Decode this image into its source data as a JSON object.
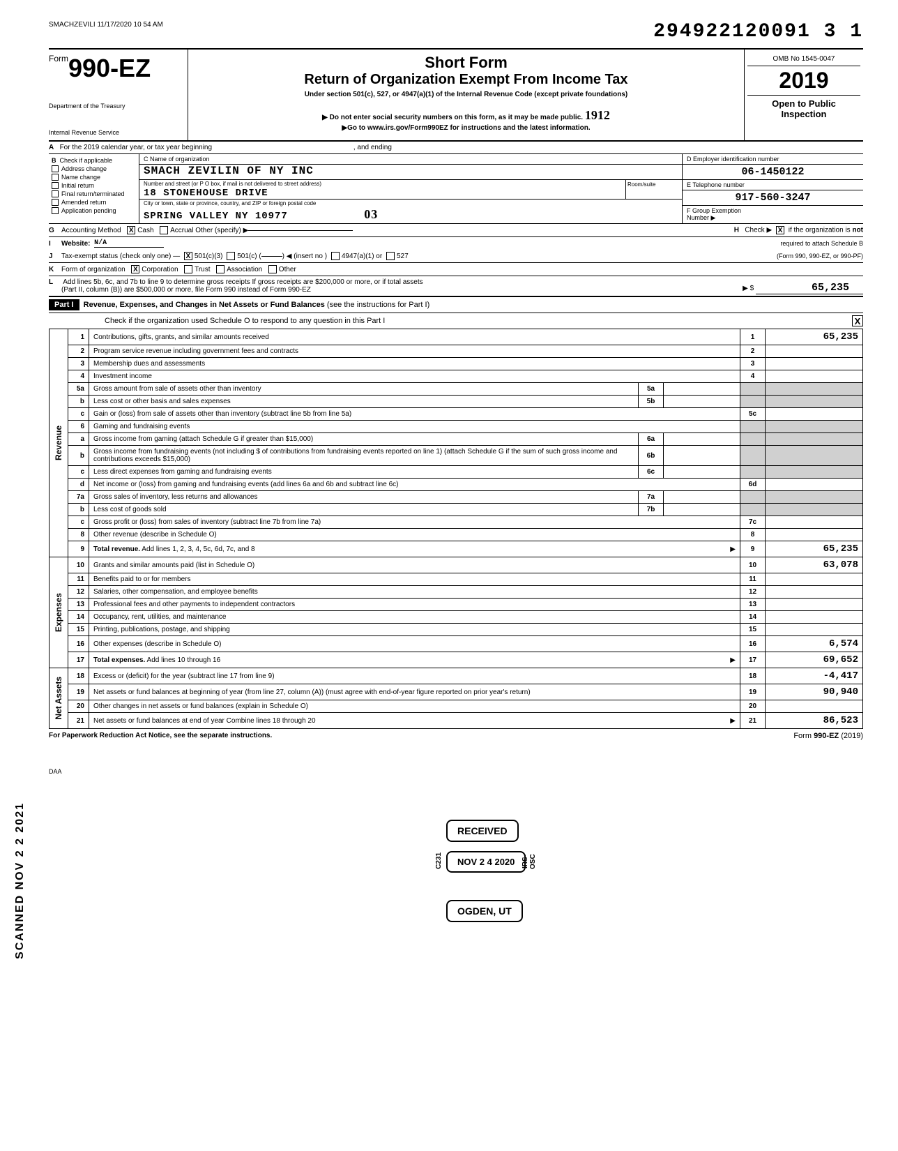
{
  "timestamp": "SMACHZEVILI 11/17/2020 10 54 AM",
  "barcode_number": "294922120091 3  1",
  "form": {
    "form_word": "Form",
    "number": "990-EZ",
    "dept1": "Department of the Treasury",
    "dept2": "Internal Revenue Service",
    "short_form": "Short Form",
    "title": "Return of Organization Exempt From Income Tax",
    "subtitle": "Under section 501(c), 527, or 4947(a)(1) of the Internal Revenue Code (except private foundations)",
    "arrow1": "▶ Do not enter social security numbers on this form, as it may be made public.",
    "arrow2": "▶Go to www.irs.gov/Form990EZ for instructions and the latest information.",
    "omb": "OMB No 1545-0047",
    "year": "2019",
    "open1": "Open to Public",
    "open2": "Inspection",
    "hand_initial": "1912"
  },
  "row_a": {
    "label": "A",
    "text": "For the 2019 calendar year, or tax year beginning",
    "mid": ", and ending"
  },
  "section_b": {
    "label": "B",
    "check_if": "Check if applicable",
    "cb1": "Address change",
    "cb2": "Name change",
    "cb3": "Initial return",
    "cb4": "Final return/terminated",
    "cb5": "Amended return",
    "cb6": "Application pending",
    "c_label": "C  Name of organization",
    "org_name": "SMACH ZEVILIN OF NY INC",
    "addr_label": "Number and street (or P O  box, if mail is not delivered to street address)",
    "addr": "18 STONEHOUSE DRIVE",
    "room_label": "Room/suite",
    "city_label": "City or town, state or province, country, and ZIP or foreign postal code",
    "city": "SPRING VALLEY          NY 10977",
    "hand_03": "03",
    "d_label": "D  Employer identification number",
    "ein": "06-1450122",
    "e_label": "E  Telephone number",
    "phone": "917-560-3247",
    "f_label": "F  Group Exemption",
    "f_label2": "Number  ▶"
  },
  "rows": {
    "g": {
      "lbl": "G",
      "text": "Accounting Method",
      "cash": "Cash",
      "accrual": "Accrual  Other (specify) ▶"
    },
    "h": {
      "lbl": "H",
      "text1": "Check ▶",
      "text2": "if the organization is",
      "text3": "not",
      "text4": "required to attach Schedule B",
      "text5": "(Form 990, 990-EZ, or 990-PF)"
    },
    "i": {
      "lbl": "I",
      "text": "Website:",
      "val": "N/A"
    },
    "j": {
      "lbl": "J",
      "text": "Tax-exempt status (check only one) —",
      "opt1": "501(c)(3)",
      "opt2": "501(c) (",
      "opt2b": ")  ◀ (insert no )",
      "opt3": "4947(a)(1) or",
      "opt4": "527"
    },
    "k": {
      "lbl": "K",
      "text": "Form of organization",
      "opt1": "Corporation",
      "opt2": "Trust",
      "opt3": "Association",
      "opt4": "Other"
    },
    "l": {
      "lbl": "L",
      "text1": "Add lines 5b, 6c, and 7b to line 9 to determine gross receipts  If gross receipts are $200,000 or more, or if total assets",
      "text2": "(Part II, column (B)) are $500,000 or more, file Form 990 instead of Form 990-EZ",
      "arrow": "▶ $",
      "amount": "65,235"
    }
  },
  "part1": {
    "label": "Part I",
    "title": "Revenue, Expenses, and Changes in Net Assets or Fund Balances",
    "title2": "(see the instructions for Part I)",
    "check_text": "Check if the organization used Schedule O to respond to any question in this Part I",
    "checked": "X"
  },
  "side_labels": {
    "revenue": "Revenue",
    "expenses": "Expenses",
    "netassets": "Net Assets"
  },
  "lines": [
    {
      "n": "1",
      "d": "Contributions, gifts, grants, and similar amounts received",
      "box": "1",
      "amt": "65,235"
    },
    {
      "n": "2",
      "d": "Program service revenue including government fees and contracts",
      "box": "2",
      "amt": ""
    },
    {
      "n": "3",
      "d": "Membership dues and assessments",
      "box": "3",
      "amt": ""
    },
    {
      "n": "4",
      "d": "Investment income",
      "box": "4",
      "amt": ""
    },
    {
      "n": "5a",
      "d": "Gross amount from sale of assets other than inventory",
      "sub": "5a"
    },
    {
      "n": "b",
      "d": "Less  cost or other basis and sales expenses",
      "sub": "5b"
    },
    {
      "n": "c",
      "d": "Gain or (loss) from sale of assets other than inventory (subtract line 5b from line 5a)",
      "box": "5c",
      "amt": ""
    },
    {
      "n": "6",
      "d": "Gaming and fundraising events"
    },
    {
      "n": "a",
      "d": "Gross income from gaming (attach Schedule G if greater than $15,000)",
      "sub": "6a"
    },
    {
      "n": "b",
      "d": "Gross income from fundraising events (not including $                           of contributions from fundraising events reported on line 1) (attach Schedule G if the sum of such gross income and contributions exceeds $15,000)",
      "sub": "6b"
    },
    {
      "n": "c",
      "d": "Less  direct expenses from gaming and fundraising events",
      "sub": "6c"
    },
    {
      "n": "d",
      "d": "Net income or (loss) from gaming and fundraising events (add lines 6a and 6b and subtract line 6c)",
      "box": "6d",
      "amt": ""
    },
    {
      "n": "7a",
      "d": "Gross sales of inventory, less returns and allowances",
      "sub": "7a"
    },
    {
      "n": "b",
      "d": "Less  cost of goods sold",
      "sub": "7b"
    },
    {
      "n": "c",
      "d": "Gross profit or (loss) from sales of inventory (subtract line 7b from line 7a)",
      "box": "7c",
      "amt": ""
    },
    {
      "n": "8",
      "d": "Other revenue (describe in Schedule O)",
      "box": "8",
      "amt": ""
    },
    {
      "n": "9",
      "d": "Total revenue. Add lines 1, 2, 3, 4, 5c, 6d, 7c, and 8",
      "box": "9",
      "amt": "65,235",
      "bold": true,
      "arrow": true
    },
    {
      "n": "10",
      "d": "Grants and similar amounts paid (list in Schedule O)",
      "box": "10",
      "amt": "63,078"
    },
    {
      "n": "11",
      "d": "Benefits paid to or for members",
      "box": "11",
      "amt": ""
    },
    {
      "n": "12",
      "d": "Salaries, other compensation, and employee benefits",
      "box": "12",
      "amt": ""
    },
    {
      "n": "13",
      "d": "Professional fees and other payments to independent contractors",
      "box": "13",
      "amt": ""
    },
    {
      "n": "14",
      "d": "Occupancy, rent, utilities, and maintenance",
      "box": "14",
      "amt": ""
    },
    {
      "n": "15",
      "d": "Printing, publications, postage, and shipping",
      "box": "15",
      "amt": ""
    },
    {
      "n": "16",
      "d": "Other expenses (describe in Schedule O)",
      "box": "16",
      "amt": "6,574"
    },
    {
      "n": "17",
      "d": "Total expenses. Add lines 10 through 16",
      "box": "17",
      "amt": "69,652",
      "bold": true,
      "arrow": true
    },
    {
      "n": "18",
      "d": "Excess or (deficit) for the year (subtract line 17 from line 9)",
      "box": "18",
      "amt": "-4,417"
    },
    {
      "n": "19",
      "d": "Net assets or fund balances at beginning of year (from line 27, column (A)) (must agree with end-of-year figure reported on prior year's return)",
      "box": "19",
      "amt": "90,940"
    },
    {
      "n": "20",
      "d": "Other changes in net assets or fund balances (explain in Schedule O)",
      "box": "20",
      "amt": ""
    },
    {
      "n": "21",
      "d": "Net assets or fund balances at end of year  Combine lines 18 through 20",
      "box": "21",
      "amt": "86,523",
      "arrow": true
    }
  ],
  "stamps": {
    "received": "RECEIVED",
    "date": "NOV 2 4 2020",
    "ogden": "OGDEN, UT",
    "c231": "C231",
    "irsosc": "IRS-OSC"
  },
  "scanned": "SCANNED  NOV 2 2 2021",
  "footer": {
    "left": "For Paperwork Reduction Act Notice, see the separate instructions.",
    "right": "Form 990-EZ (2019)",
    "daa": "DAA"
  },
  "colors": {
    "black": "#000000",
    "shade": "#d0d0d0",
    "white": "#ffffff"
  }
}
